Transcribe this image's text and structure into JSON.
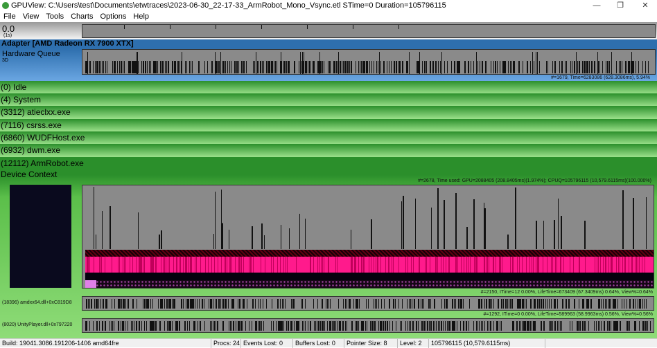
{
  "window": {
    "title": "GPUView: C:\\Users\\test\\Documents\\etwtraces\\2023-06-30_22-17-33_ArmRobot_Mono_Vsync.etl STime=0 Duration=105796115",
    "minimize": "—",
    "restore": "❐",
    "close": "✕",
    "icon": "gpuview-app-icon"
  },
  "menu": [
    "File",
    "View",
    "Tools",
    "Charts",
    "Options",
    "Help"
  ],
  "ruler": {
    "value": "0.0",
    "unit": "(1s)"
  },
  "adapter": {
    "title": "Adapter [AMD Radeon RX 7900 XTX]",
    "queue_label": "Hardware Queue",
    "queue_type": "3D",
    "stats": "#=1679,  Time=6283086 (628.3086ms),  5.94%"
  },
  "processes": [
    "(0) Idle",
    "(4) System",
    "(3312) atieclxx.exe",
    "(7116) csrss.exe",
    "(6860) WUDFHost.exe",
    "(6932) dwm.exe",
    "(12112) ArmRobot.exe"
  ],
  "device_context": {
    "title": "Device Context",
    "stats": "#=2678,  Time used: GPU=2088405 (208.8405ms)(1.974%); CPUQ=105796115 (10,579.6115ms)(100.000%)"
  },
  "threads": [
    {
      "label": "(18396) amdxx64.dll+0xC819D8",
      "stats": "#=2150,  ITime=12  0.00%,  LifeTime=673409 (67.3409ms)  0.64%,  View%=0.64%"
    },
    {
      "label": "(8020) UnityPlayer.dll+0x797220",
      "stats": "#=1292,  ITime=0  0.00%,  LifeTime=589963 (58.9963ms)  0.56%,  View%=0.56%"
    }
  ],
  "status": {
    "build": "Build: 19041.3086.191206-1406  amd64fre",
    "procs": "Procs: 24",
    "events_lost": "Events Lost: 0",
    "buffers_lost": "Buffers Lost: 0",
    "pointer_size": "Pointer Size: 8",
    "level": "Level: 2",
    "duration": "105796115 (10,579.6115ms)"
  },
  "colors": {
    "adapter": "#2e6fae",
    "process": "#2b8f2b",
    "dma_packets": "#ff1a8c"
  }
}
